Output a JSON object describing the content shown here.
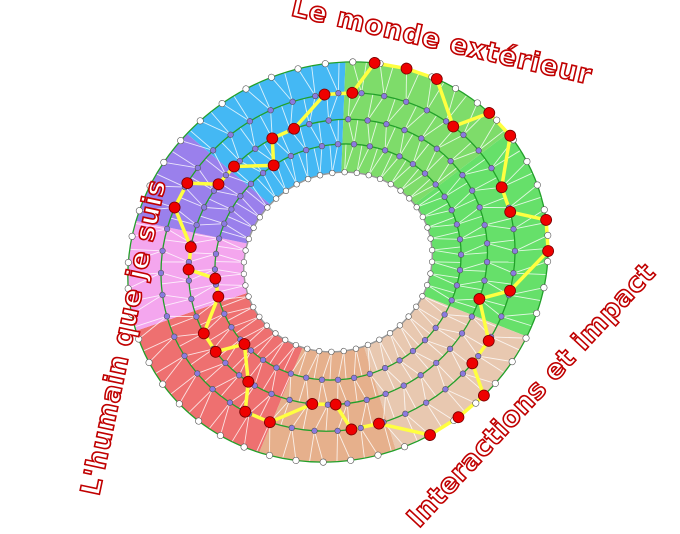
{
  "labels": {
    "top": "Le monde extérieur",
    "left": "L'humain que je suis",
    "bottom_right": "Interactions et impact"
  },
  "colors": {
    "label_outline": "#c00000",
    "ring_lines": "#22a02a",
    "path": "#ffff40",
    "red_node": "#ee0000",
    "inner_node": "#8a7ae0",
    "outer_node": "#ffffff"
  },
  "sectors": [
    {
      "color": "#44b8f4"
    },
    {
      "color": "#7edc6a"
    },
    {
      "color": "#66e06a"
    },
    {
      "color": "#e8c8b0"
    },
    {
      "color": "#e6b08c"
    },
    {
      "color": "#ee7070"
    },
    {
      "color": "#f4a6ee"
    },
    {
      "color": "#9a80ec"
    }
  ]
}
